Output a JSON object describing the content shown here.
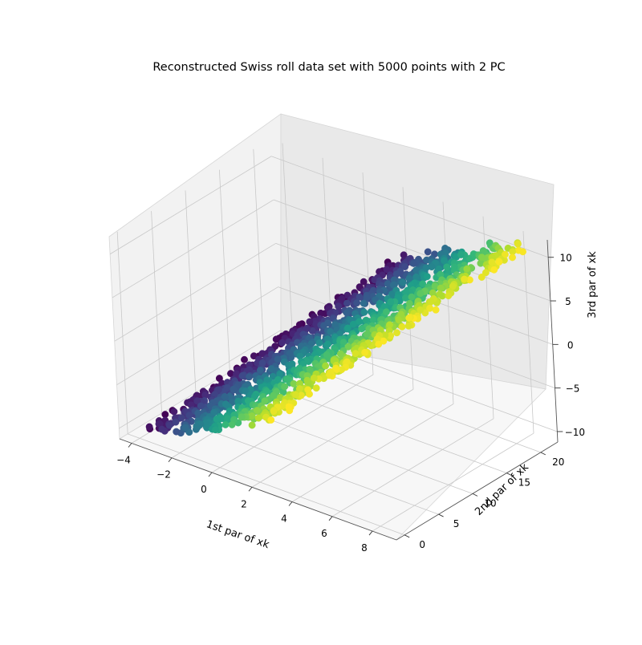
{
  "chart_data": {
    "type": "scatter",
    "projection": "3d",
    "title": "Reconstructed Swiss roll data set with 5000 points with 2 PC",
    "xlabel": "1st par of xk",
    "ylabel": "2nd par of xk",
    "zlabel": "3rd par of xk",
    "xlim": [
      -4.6,
      9.2
    ],
    "ylim": [
      -1.2,
      22.5
    ],
    "zlim": [
      -11.2,
      12.0
    ],
    "xticks": [
      -4,
      -2,
      0,
      2,
      4,
      6,
      8
    ],
    "xtick_labels": [
      "−4",
      "−2",
      "0",
      "2",
      "4",
      "6",
      "8"
    ],
    "yticks": [
      0,
      5,
      10,
      15,
      20
    ],
    "ytick_labels": [
      "0",
      "5",
      "10",
      "15",
      "20"
    ],
    "zticks": [
      -10,
      -5,
      0,
      5,
      10
    ],
    "ztick_labels": [
      "−10",
      "−5",
      "0",
      "5",
      "10"
    ],
    "grid": true,
    "colormap": "viridis",
    "n_points": 5000,
    "plane_model": {
      "description": "points lie on a plane spanned by 2 principal components",
      "x_range_along_pc1": [
        -4,
        8.7
      ],
      "y_range_along_pc2": [
        0.5,
        21
      ]
    }
  }
}
